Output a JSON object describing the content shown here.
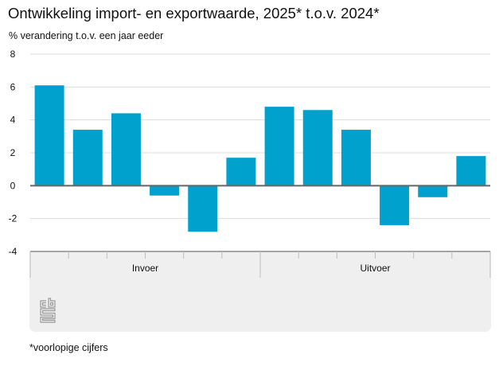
{
  "title": "Ontwikkeling import- en exportwaarde, 2025* t.o.v. 2024*",
  "subtitle": "% verandering t.o.v. een jaar eeder",
  "footnote": "*voorlopige cijfers",
  "logo": "cbs-logo-icon",
  "colors": {
    "bar": "#00a1cd",
    "grid": "#dcdcdc",
    "zero_line": "#666666",
    "axis_box": "#efefef"
  },
  "chart_data": {
    "type": "bar",
    "title": "Ontwikkeling import- en exportwaarde, 2025* t.o.v. 2024*",
    "xlabel": "",
    "ylabel": "% verandering t.o.v. een jaar eeder",
    "ylim": [
      -4,
      8
    ],
    "yticks": [
      8,
      6,
      4,
      2,
      0,
      -2,
      -4
    ],
    "grid": true,
    "legend": "none",
    "groups": [
      {
        "name": "Invoer",
        "values": [
          6.1,
          3.4,
          4.4,
          -0.6,
          -2.8,
          1.7
        ]
      },
      {
        "name": "Uitvoer",
        "values": [
          4.8,
          4.6,
          3.4,
          -2.4,
          -0.7,
          1.8
        ]
      }
    ],
    "categories": [
      "",
      "",
      "",
      "",
      "",
      "",
      "",
      "",
      "",
      "",
      "",
      ""
    ],
    "values": [
      6.1,
      3.4,
      4.4,
      -0.6,
      -2.8,
      1.7,
      4.8,
      4.6,
      3.4,
      -2.4,
      -0.7,
      1.8
    ],
    "annotations": [
      "*voorlopige cijfers"
    ]
  }
}
